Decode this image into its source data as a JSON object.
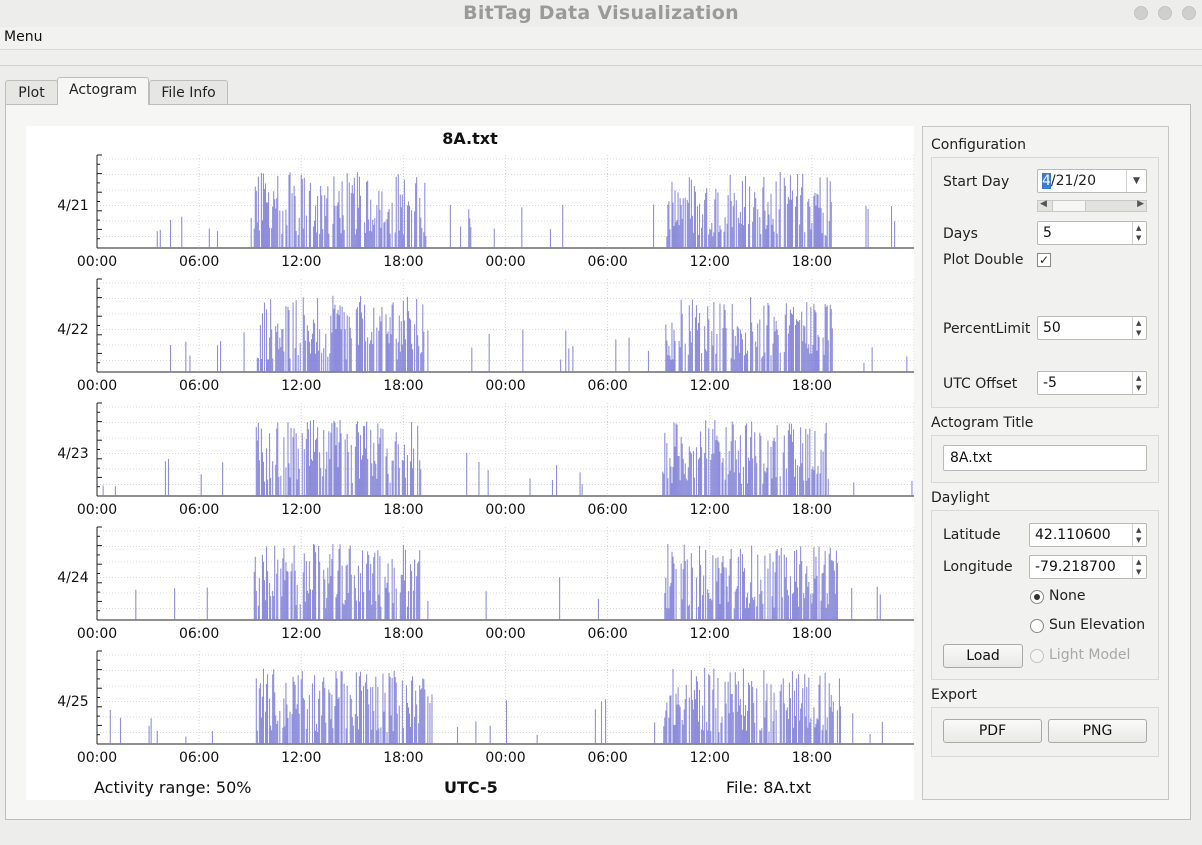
{
  "window": {
    "title": "BitTag Data Visualization"
  },
  "menubar": {
    "menu_label": "Menu"
  },
  "tabs": [
    {
      "label": "Plot"
    },
    {
      "label": "Actogram",
      "active": true
    },
    {
      "label": "File Info"
    }
  ],
  "actogram": {
    "title": "8A.txt",
    "footer": {
      "activity_range": "Activity range: 50%",
      "utc": "UTC-5",
      "file": "File: 8A.txt"
    }
  },
  "chart_data": {
    "type": "bar",
    "title": "8A.txt",
    "style": "double-plotted actogram",
    "color": "#7b7bd6",
    "rows": [
      {
        "label": "4/21"
      },
      {
        "label": "4/22"
      },
      {
        "label": "4/23"
      },
      {
        "label": "4/24"
      },
      {
        "label": "4/25"
      }
    ],
    "x_ticks": [
      "00:00",
      "06:00",
      "12:00",
      "18:00",
      "00:00",
      "06:00",
      "12:00",
      "18:00"
    ],
    "x_range_hours": [
      0,
      48
    ],
    "active_periods": [
      {
        "row": "4/21",
        "start_hour": 9.2,
        "end_hour": 19.4
      },
      {
        "row": "4/22",
        "start_hour": 9.4,
        "end_hour": 19.2
      },
      {
        "row": "4/23",
        "start_hour": 9.3,
        "end_hour": 19.2
      },
      {
        "row": "4/24",
        "start_hour": 9.2,
        "end_hour": 19.0
      },
      {
        "row": "4/25",
        "start_hour": 9.3,
        "end_hour": 19.7
      }
    ],
    "grid": true
  },
  "config": {
    "heading": "Configuration",
    "start_day_label": "Start Day",
    "start_day_value_selected": "4",
    "start_day_value_rest": "/21/20",
    "days_label": "Days",
    "days_value": "5",
    "plot_double_label": "Plot Double",
    "plot_double_checked": "✓",
    "percent_limit_label": "PercentLimit",
    "percent_limit_value": "50",
    "utc_offset_label": "UTC Offset",
    "utc_offset_value": "-5"
  },
  "title_section": {
    "heading": "Actogram Title",
    "value": "8A.txt"
  },
  "daylight": {
    "heading": "Daylight",
    "latitude_label": "Latitude",
    "latitude_value": "42.110600",
    "longitude_label": "Longitude",
    "longitude_value": "-79.218700",
    "option_none": "None",
    "option_sun": "Sun Elevation",
    "option_light": "Light Model",
    "load_label": "Load"
  },
  "export": {
    "heading": "Export",
    "pdf_label": "PDF",
    "png_label": "PNG"
  }
}
